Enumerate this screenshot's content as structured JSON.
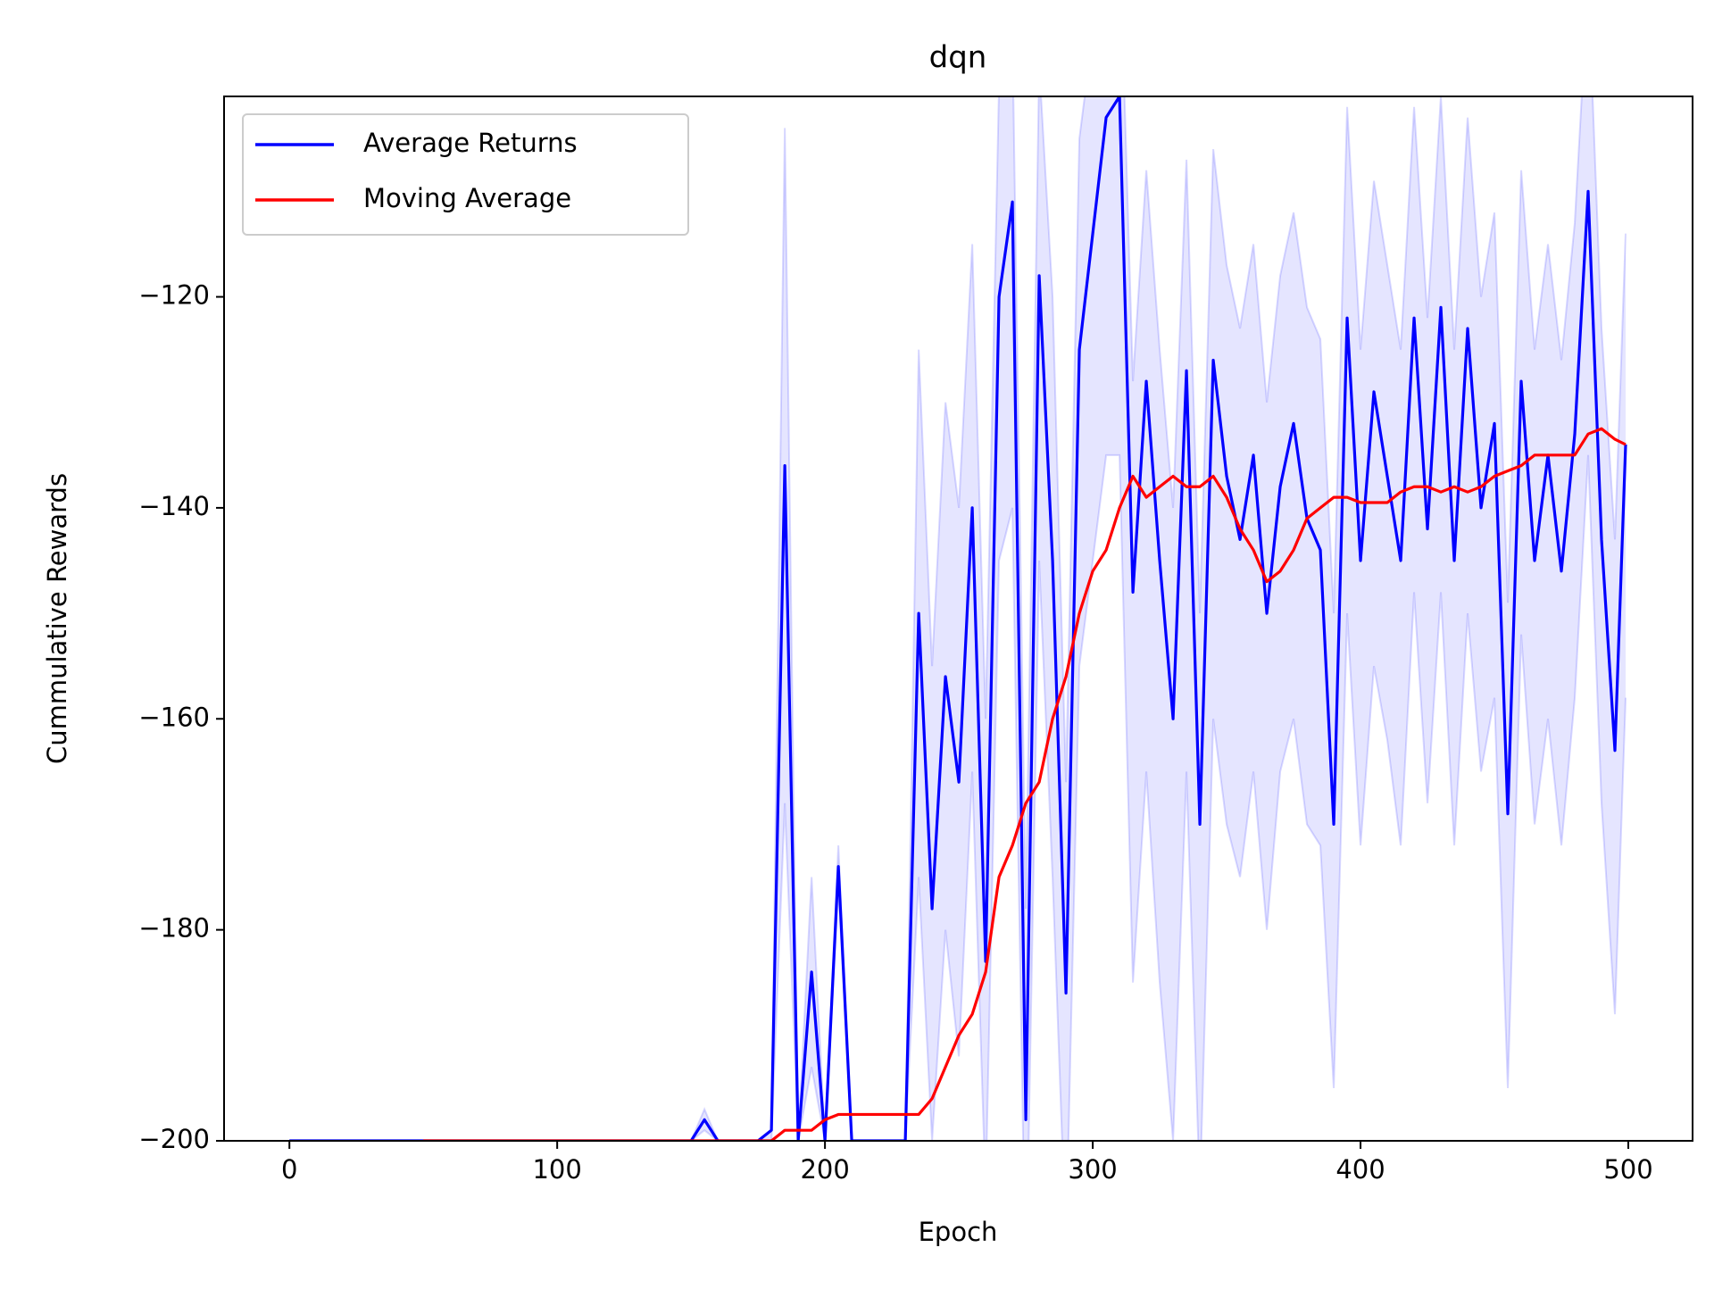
{
  "chart_data": {
    "type": "line",
    "title": "dqn",
    "x_label": "Epoch",
    "y_label": "Cummulative Rewards",
    "xlim": [
      -24.4,
      524
    ],
    "ylim": [
      -200,
      -101
    ],
    "xticks": [
      0,
      100,
      200,
      300,
      400,
      500
    ],
    "yticks": [
      {
        "value": -200,
        "label": "−200"
      },
      {
        "value": -180,
        "label": "−180"
      },
      {
        "value": -160,
        "label": "−160"
      },
      {
        "value": -140,
        "label": "−140"
      },
      {
        "value": -120,
        "label": "−120"
      }
    ],
    "legend": "upper left",
    "x": [
      0,
      5,
      10,
      15,
      20,
      25,
      30,
      35,
      40,
      45,
      50,
      55,
      60,
      65,
      70,
      75,
      80,
      85,
      90,
      95,
      100,
      105,
      110,
      115,
      120,
      125,
      130,
      135,
      140,
      145,
      150,
      155,
      160,
      165,
      170,
      175,
      180,
      185,
      190,
      195,
      200,
      205,
      210,
      215,
      220,
      225,
      230,
      235,
      240,
      245,
      250,
      255,
      260,
      265,
      270,
      275,
      280,
      285,
      290,
      295,
      300,
      305,
      310,
      315,
      320,
      325,
      330,
      335,
      340,
      345,
      350,
      355,
      360,
      365,
      370,
      375,
      380,
      385,
      390,
      395,
      400,
      405,
      410,
      415,
      420,
      425,
      430,
      435,
      440,
      445,
      450,
      455,
      460,
      465,
      470,
      475,
      480,
      485,
      490,
      495,
      499
    ],
    "band": {
      "color": "#0000ff",
      "upper": [
        -200,
        -200,
        -200,
        -200,
        -200,
        -200,
        -200,
        -200,
        -200,
        -200,
        -200,
        -200,
        -200,
        -200,
        -200,
        -200,
        -200,
        -200,
        -200,
        -200,
        -200,
        -200,
        -200,
        -200,
        -200,
        -200,
        -200,
        -200,
        -200,
        -200,
        -200,
        -197,
        -200,
        -200,
        -200,
        -200,
        -199,
        -104,
        -200,
        -175,
        -200,
        -172,
        -200,
        -200,
        -200,
        -200,
        -200,
        -125,
        -155,
        -130,
        -140,
        -115,
        -160,
        -100,
        -95,
        -178,
        -98,
        -120,
        -166,
        -105,
        -95,
        -85,
        -85,
        -128,
        -108,
        -125,
        -140,
        -107,
        -150,
        -106,
        -117,
        -123,
        -115,
        -130,
        -118,
        -112,
        -121,
        -124,
        -150,
        -102,
        -125,
        -109,
        -117,
        -125,
        -102,
        -122,
        -101,
        -125,
        -103,
        -120,
        -112,
        -149,
        -108,
        -125,
        -115,
        -126,
        -113,
        -90,
        -123,
        -143,
        -114
      ],
      "lower": [
        -200,
        -200,
        -200,
        -200,
        -200,
        -200,
        -200,
        -200,
        -200,
        -200,
        -200,
        -200,
        -200,
        -200,
        -200,
        -200,
        -200,
        -200,
        -200,
        -200,
        -200,
        -200,
        -200,
        -200,
        -200,
        -200,
        -200,
        -200,
        -200,
        -200,
        -200,
        -199,
        -200,
        -200,
        -200,
        -200,
        -200,
        -168,
        -200,
        -193,
        -200,
        -176,
        -200,
        -200,
        -200,
        -200,
        -200,
        -175,
        -200,
        -180,
        -192,
        -165,
        -205,
        -145,
        -140,
        -215,
        -145,
        -175,
        -210,
        -155,
        -145,
        -135,
        -135,
        -185,
        -165,
        -185,
        -200,
        -165,
        -205,
        -160,
        -170,
        -175,
        -165,
        -180,
        -165,
        -160,
        -170,
        -172,
        -195,
        -150,
        -172,
        -155,
        -162,
        -172,
        -148,
        -168,
        -148,
        -172,
        -150,
        -165,
        -158,
        -195,
        -152,
        -170,
        -160,
        -172,
        -158,
        -135,
        -168,
        -188,
        -158
      ]
    },
    "series": [
      {
        "name": "Average Returns",
        "color": "#0000ff",
        "values": [
          -200,
          -200,
          -200,
          -200,
          -200,
          -200,
          -200,
          -200,
          -200,
          -200,
          -200,
          -200,
          -200,
          -200,
          -200,
          -200,
          -200,
          -200,
          -200,
          -200,
          -200,
          -200,
          -200,
          -200,
          -200,
          -200,
          -200,
          -200,
          -200,
          -200,
          -200,
          -198,
          -200,
          -200,
          -200,
          -200,
          -199,
          -136,
          -200,
          -184,
          -200,
          -174,
          -200,
          -200,
          -200,
          -200,
          -200,
          -150,
          -178,
          -156,
          -166,
          -140,
          -183,
          -120,
          -111,
          -198,
          -118,
          -145,
          -186,
          -125,
          -114,
          -103,
          -101,
          -148,
          -128,
          -145,
          -160,
          -127,
          -170,
          -126,
          -137,
          -143,
          -135,
          -150,
          -138,
          -132,
          -141,
          -144,
          -170,
          -122,
          -145,
          -129,
          -137,
          -145,
          -122,
          -142,
          -121,
          -145,
          -123,
          -140,
          -132,
          -169,
          -128,
          -145,
          -135,
          -146,
          -133,
          -110,
          -143,
          -163,
          -134
        ]
      },
      {
        "name": "Moving Average",
        "color": "#ff0000",
        "values": [
          null,
          null,
          null,
          null,
          null,
          null,
          null,
          null,
          null,
          null,
          -200,
          -200,
          -200,
          -200,
          -200,
          -200,
          -200,
          -200,
          -200,
          -200,
          -200,
          -200,
          -200,
          -200,
          -200,
          -200,
          -200,
          -200,
          -200,
          -200,
          -200,
          -200,
          -200,
          -200,
          -200,
          -200,
          -200,
          -199,
          -199,
          -199,
          -198,
          -197.5,
          -197.5,
          -197.5,
          -197.5,
          -197.5,
          -197.5,
          -197.5,
          -196,
          -193,
          -190,
          -188,
          -184,
          -175,
          -172,
          -168,
          -166,
          -160,
          -156,
          -150,
          -146,
          -144,
          -140,
          -137,
          -139,
          -138,
          -137,
          -138,
          -138,
          -137,
          -139,
          -142,
          -144,
          -147,
          -146,
          -144,
          -141,
          -140,
          -139,
          -139,
          -139.5,
          -139.5,
          -139.5,
          -138.5,
          -138,
          -138,
          -138.5,
          -138,
          -138.5,
          -138,
          -137,
          -136.5,
          -136,
          -135,
          -135,
          -135,
          -135,
          -133,
          -132.5,
          -133.5,
          -134
        ]
      }
    ]
  }
}
